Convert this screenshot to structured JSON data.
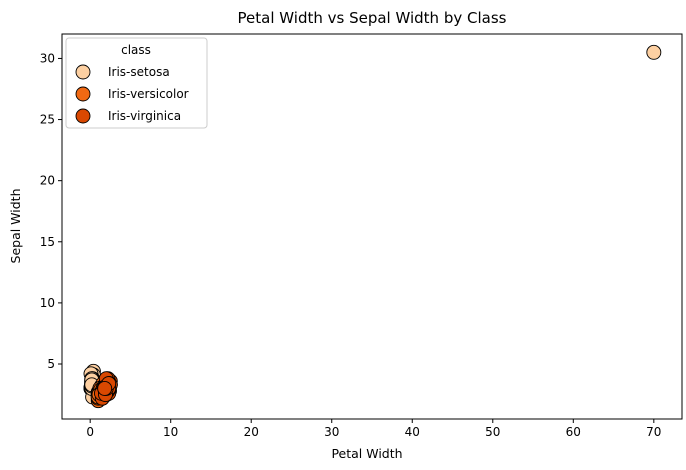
{
  "chart_data": {
    "type": "scatter",
    "title": "Petal Width vs Sepal Width by Class",
    "xlabel": "Petal Width",
    "ylabel": "Sepal Width",
    "xlim": [
      -3.5,
      73.5
    ],
    "ylim": [
      0.5,
      32
    ],
    "xticks": [
      0,
      10,
      20,
      30,
      40,
      50,
      60,
      70
    ],
    "yticks": [
      5,
      10,
      15,
      20,
      25,
      30
    ],
    "grid": false,
    "legend": {
      "title": "class",
      "placement": "top-left"
    },
    "series": [
      {
        "name": "Iris-setosa",
        "color": "#fdd0a2",
        "points": [
          [
            0.2,
            3.5
          ],
          [
            0.2,
            3.0
          ],
          [
            0.2,
            3.2
          ],
          [
            0.2,
            3.1
          ],
          [
            0.2,
            3.6
          ],
          [
            0.4,
            3.9
          ],
          [
            0.3,
            3.4
          ],
          [
            0.2,
            3.4
          ],
          [
            0.2,
            2.9
          ],
          [
            0.1,
            3.1
          ],
          [
            0.2,
            3.7
          ],
          [
            0.2,
            3.4
          ],
          [
            0.1,
            3.0
          ],
          [
            0.1,
            3.0
          ],
          [
            0.2,
            4.0
          ],
          [
            0.4,
            4.4
          ],
          [
            0.4,
            3.9
          ],
          [
            0.3,
            3.5
          ],
          [
            0.3,
            3.8
          ],
          [
            0.3,
            3.8
          ],
          [
            0.2,
            3.4
          ],
          [
            0.4,
            3.7
          ],
          [
            0.2,
            3.6
          ],
          [
            0.5,
            3.3
          ],
          [
            0.2,
            3.4
          ],
          [
            0.2,
            3.0
          ],
          [
            0.4,
            3.4
          ],
          [
            0.2,
            3.5
          ],
          [
            0.2,
            3.4
          ],
          [
            0.2,
            3.2
          ],
          [
            0.4,
            4.1
          ],
          [
            0.1,
            4.2
          ],
          [
            0.2,
            3.1
          ],
          [
            0.3,
            2.3
          ],
          [
            0.6,
            3.5
          ],
          [
            0.3,
            3.8
          ],
          [
            0.2,
            3.0
          ],
          [
            0.2,
            3.8
          ],
          [
            0.2,
            3.2
          ],
          [
            0.2,
            3.7
          ],
          [
            0.2,
            3.3
          ],
          [
            70,
            30.5
          ]
        ]
      },
      {
        "name": "Iris-versicolor",
        "color": "#f16913",
        "points": [
          [
            1.4,
            3.2
          ],
          [
            1.5,
            3.2
          ],
          [
            1.5,
            3.1
          ],
          [
            1.3,
            2.3
          ],
          [
            1.5,
            2.8
          ],
          [
            1.3,
            2.8
          ],
          [
            1.6,
            3.3
          ],
          [
            1.0,
            2.4
          ],
          [
            1.3,
            2.9
          ],
          [
            1.4,
            2.7
          ],
          [
            1.0,
            2.0
          ],
          [
            1.5,
            3.0
          ],
          [
            1.0,
            2.2
          ],
          [
            1.4,
            2.9
          ],
          [
            1.3,
            2.9
          ],
          [
            1.4,
            3.1
          ],
          [
            1.5,
            3.0
          ],
          [
            1.0,
            2.7
          ],
          [
            1.5,
            2.2
          ],
          [
            1.1,
            2.5
          ],
          [
            1.8,
            3.2
          ],
          [
            1.3,
            2.8
          ],
          [
            1.5,
            2.5
          ],
          [
            1.2,
            2.8
          ],
          [
            1.3,
            2.9
          ],
          [
            1.4,
            3.0
          ],
          [
            1.4,
            2.8
          ],
          [
            1.7,
            3.0
          ],
          [
            1.5,
            2.9
          ],
          [
            1.0,
            2.6
          ],
          [
            1.1,
            2.4
          ],
          [
            1.0,
            2.4
          ],
          [
            1.2,
            2.7
          ],
          [
            1.6,
            2.7
          ],
          [
            1.5,
            3.0
          ],
          [
            1.6,
            3.4
          ],
          [
            1.5,
            3.1
          ],
          [
            1.3,
            2.3
          ],
          [
            1.3,
            3.0
          ],
          [
            1.3,
            2.5
          ],
          [
            1.2,
            2.6
          ],
          [
            1.4,
            3.0
          ],
          [
            1.2,
            2.6
          ],
          [
            1.0,
            2.3
          ],
          [
            1.3,
            2.7
          ],
          [
            1.2,
            3.0
          ],
          [
            1.3,
            2.9
          ],
          [
            1.1,
            2.5
          ]
        ]
      },
      {
        "name": "Iris-virginica",
        "color": "#d94801",
        "points": [
          [
            2.5,
            3.3
          ],
          [
            1.9,
            2.7
          ],
          [
            2.1,
            3.0
          ],
          [
            1.8,
            2.9
          ],
          [
            2.2,
            3.0
          ],
          [
            2.1,
            3.0
          ],
          [
            1.7,
            2.5
          ],
          [
            1.8,
            2.9
          ],
          [
            1.8,
            2.5
          ],
          [
            2.5,
            3.6
          ],
          [
            2.0,
            3.2
          ],
          [
            1.9,
            2.7
          ],
          [
            2.1,
            3.0
          ],
          [
            2.0,
            2.5
          ],
          [
            2.4,
            2.8
          ],
          [
            2.3,
            3.2
          ],
          [
            1.8,
            3.0
          ],
          [
            2.2,
            3.8
          ],
          [
            2.3,
            2.6
          ],
          [
            1.5,
            2.2
          ],
          [
            2.3,
            3.2
          ],
          [
            2.0,
            2.8
          ],
          [
            2.0,
            2.8
          ],
          [
            1.8,
            2.7
          ],
          [
            2.1,
            3.3
          ],
          [
            1.8,
            3.2
          ],
          [
            1.8,
            2.8
          ],
          [
            1.8,
            3.0
          ],
          [
            2.1,
            2.8
          ],
          [
            1.6,
            3.0
          ],
          [
            1.9,
            2.8
          ],
          [
            2.0,
            3.8
          ],
          [
            2.2,
            2.8
          ],
          [
            1.5,
            2.8
          ],
          [
            1.4,
            2.6
          ],
          [
            2.3,
            3.0
          ],
          [
            2.4,
            3.4
          ],
          [
            1.8,
            3.1
          ],
          [
            1.8,
            3.0
          ],
          [
            2.1,
            3.1
          ],
          [
            2.4,
            3.1
          ],
          [
            2.3,
            3.1
          ],
          [
            1.9,
            2.7
          ],
          [
            2.3,
            3.2
          ],
          [
            2.5,
            3.3
          ],
          [
            2.3,
            3.0
          ],
          [
            1.9,
            2.5
          ],
          [
            2.0,
            3.0
          ],
          [
            2.3,
            3.4
          ],
          [
            1.8,
            3.0
          ]
        ]
      }
    ]
  }
}
